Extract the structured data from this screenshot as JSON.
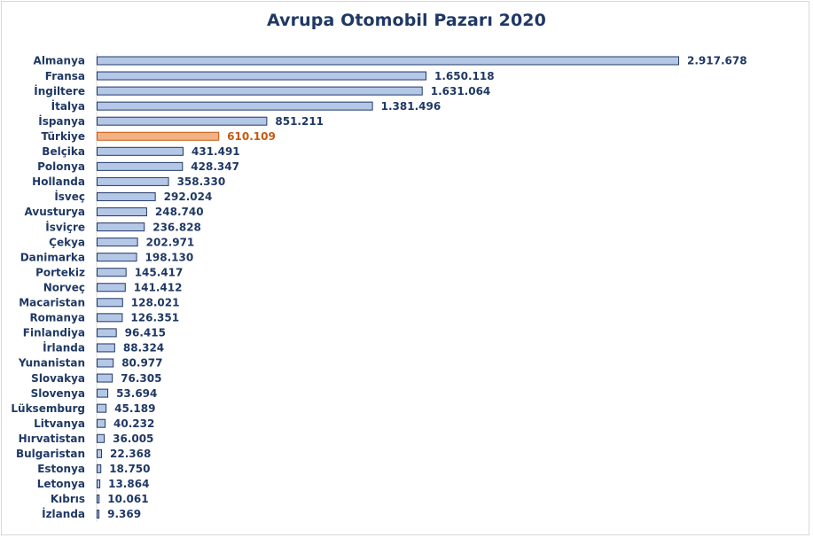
{
  "colors": {
    "bar_fill": "#b4c7e7",
    "bar_stroke": "#1f3864",
    "highlight_fill": "#f4b183",
    "highlight_stroke": "#c55a11",
    "label": "#1f3864",
    "value_label": "#1f3864",
    "highlight_value_label": "#c55a11"
  },
  "chart_data": {
    "type": "bar",
    "orientation": "horizontal",
    "title": "Avrupa Otomobil Pazarı 2020",
    "xlabel": "",
    "ylabel": "",
    "xlim": [
      0,
      2917678
    ],
    "grid": false,
    "legend": "none",
    "highlight": "Türkiye",
    "categories": [
      "Almanya",
      "Fransa",
      "İngiltere",
      "İtalya",
      "İspanya",
      "Türkiye",
      "Belçika",
      "Polonya",
      "Hollanda",
      "İsveç",
      "Avusturya",
      "İsviçre",
      "Çekya",
      "Danimarka",
      "Portekiz",
      "Norveç",
      "Macaristan",
      "Romanya",
      "Finlandiya",
      "İrlanda",
      "Yunanistan",
      "Slovakya",
      "Slovenya",
      "Lüksemburg",
      "Litvanya",
      "Hırvatistan",
      "Bulgaristan",
      "Estonya",
      "Letonya",
      "Kıbrıs",
      "İzlanda"
    ],
    "values": [
      2917678,
      1650118,
      1631064,
      1381496,
      851211,
      610109,
      431491,
      428347,
      358330,
      292024,
      248740,
      236828,
      202971,
      198130,
      145417,
      141412,
      128021,
      126351,
      96415,
      88324,
      80977,
      76305,
      53694,
      45189,
      40232,
      36005,
      22368,
      18750,
      13864,
      10061,
      9369
    ],
    "value_labels": [
      "2.917.678",
      "1.650.118",
      "1.631.064",
      "1.381.496",
      "851.211",
      "610.109",
      "431.491",
      "428.347",
      "358.330",
      "292.024",
      "248.740",
      "236.828",
      "202.971",
      "198.130",
      "145.417",
      "141.412",
      "128.021",
      "126.351",
      "96.415",
      "88.324",
      "80.977",
      "76.305",
      "53.694",
      "45.189",
      "40.232",
      "36.005",
      "22.368",
      "18.750",
      "13.864",
      "10.061",
      "9.369"
    ]
  }
}
